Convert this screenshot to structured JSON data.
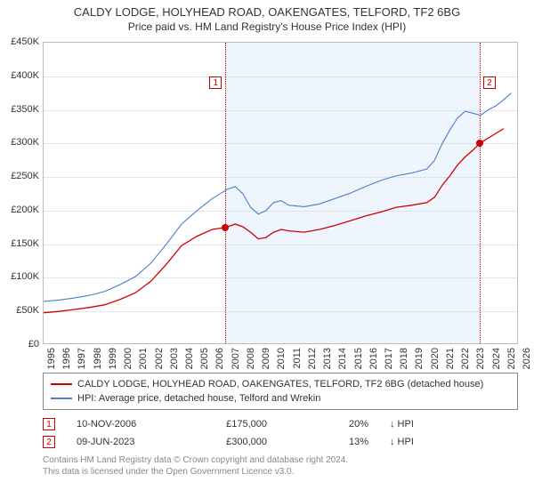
{
  "title": "CALDY LODGE, HOLYHEAD ROAD, OAKENGATES, TELFORD, TF2 6BG",
  "subtitle": "Price paid vs. HM Land Registry's House Price Index (HPI)",
  "colors": {
    "series_red": "#d00000",
    "series_blue": "#4a7fc8",
    "grid": "#d0d0d0",
    "axis": "#bbbbbb",
    "marker_border": "#c00",
    "shade_fill": "rgba(100,160,230,0.10)",
    "footer_text": "#888888"
  },
  "y_axis": {
    "min": 0,
    "max": 450,
    "ticks": [
      0,
      50,
      100,
      150,
      200,
      250,
      300,
      350,
      400,
      450
    ],
    "tick_labels": [
      "£0",
      "£50K",
      "£100K",
      "£150K",
      "£200K",
      "£250K",
      "£300K",
      "£350K",
      "£400K",
      "£450K"
    ]
  },
  "x_axis": {
    "min": 1995,
    "max": 2026,
    "ticks": [
      1995,
      1996,
      1997,
      1998,
      1999,
      2000,
      2001,
      2002,
      2003,
      2004,
      2005,
      2006,
      2007,
      2008,
      2009,
      2010,
      2011,
      2012,
      2013,
      2014,
      2015,
      2016,
      2017,
      2018,
      2019,
      2020,
      2021,
      2022,
      2023,
      2024,
      2025,
      2026
    ]
  },
  "shade_ranges": [
    {
      "x0": 2006.86,
      "x1": 2023.44
    }
  ],
  "markers": [
    {
      "n": "1",
      "x": 2006.86,
      "y_box": 400
    },
    {
      "n": "2",
      "x": 2023.44,
      "y_box": 400
    }
  ],
  "points": [
    {
      "x": 2006.86,
      "y": 175,
      "color": "#d00000"
    },
    {
      "x": 2023.44,
      "y": 300,
      "color": "#d00000"
    }
  ],
  "series": [
    {
      "name": "red",
      "color": "#d00000",
      "width": 1.3,
      "data": [
        [
          1995,
          48
        ],
        [
          1996,
          50
        ],
        [
          1997,
          53
        ],
        [
          1998,
          56
        ],
        [
          1999,
          60
        ],
        [
          2000,
          68
        ],
        [
          2001,
          78
        ],
        [
          2002,
          95
        ],
        [
          2003,
          120
        ],
        [
          2004,
          148
        ],
        [
          2005,
          162
        ],
        [
          2006,
          172
        ],
        [
          2006.86,
          175
        ],
        [
          2007.5,
          180
        ],
        [
          2008,
          176
        ],
        [
          2008.5,
          168
        ],
        [
          2009,
          158
        ],
        [
          2009.5,
          160
        ],
        [
          2010,
          168
        ],
        [
          2010.5,
          172
        ],
        [
          2011,
          170
        ],
        [
          2012,
          168
        ],
        [
          2013,
          172
        ],
        [
          2014,
          178
        ],
        [
          2015,
          185
        ],
        [
          2016,
          192
        ],
        [
          2017,
          198
        ],
        [
          2018,
          205
        ],
        [
          2019,
          208
        ],
        [
          2020,
          212
        ],
        [
          2020.5,
          220
        ],
        [
          2021,
          238
        ],
        [
          2021.5,
          252
        ],
        [
          2022,
          268
        ],
        [
          2022.5,
          280
        ],
        [
          2023,
          290
        ],
        [
          2023.44,
          300
        ],
        [
          2024,
          308
        ],
        [
          2024.5,
          315
        ],
        [
          2025,
          322
        ]
      ]
    },
    {
      "name": "blue",
      "color": "#4a7fc8",
      "width": 1.1,
      "data": [
        [
          1995,
          65
        ],
        [
          1996,
          67
        ],
        [
          1997,
          70
        ],
        [
          1998,
          74
        ],
        [
          1999,
          80
        ],
        [
          2000,
          90
        ],
        [
          2001,
          102
        ],
        [
          2002,
          122
        ],
        [
          2003,
          150
        ],
        [
          2004,
          180
        ],
        [
          2005,
          200
        ],
        [
          2006,
          218
        ],
        [
          2007,
          232
        ],
        [
          2007.5,
          236
        ],
        [
          2008,
          225
        ],
        [
          2008.5,
          205
        ],
        [
          2009,
          195
        ],
        [
          2009.5,
          200
        ],
        [
          2010,
          212
        ],
        [
          2010.5,
          215
        ],
        [
          2011,
          208
        ],
        [
          2012,
          206
        ],
        [
          2013,
          210
        ],
        [
          2014,
          218
        ],
        [
          2015,
          226
        ],
        [
          2016,
          236
        ],
        [
          2017,
          245
        ],
        [
          2018,
          252
        ],
        [
          2019,
          256
        ],
        [
          2020,
          262
        ],
        [
          2020.5,
          275
        ],
        [
          2021,
          300
        ],
        [
          2021.5,
          320
        ],
        [
          2022,
          338
        ],
        [
          2022.5,
          348
        ],
        [
          2023,
          345
        ],
        [
          2023.5,
          342
        ],
        [
          2024,
          350
        ],
        [
          2024.5,
          356
        ],
        [
          2025,
          365
        ],
        [
          2025.5,
          375
        ]
      ]
    }
  ],
  "legend": [
    {
      "color": "#d00000",
      "label": "CALDY LODGE, HOLYHEAD ROAD, OAKENGATES, TELFORD, TF2 6BG (detached house)"
    },
    {
      "color": "#4a7fc8",
      "label": "HPI: Average price, detached house, Telford and Wrekin"
    }
  ],
  "events": [
    {
      "n": "1",
      "date": "10-NOV-2006",
      "price": "£175,000",
      "pct": "20%",
      "dir": "↓ HPI"
    },
    {
      "n": "2",
      "date": "09-JUN-2023",
      "price": "£300,000",
      "pct": "13%",
      "dir": "↓ HPI"
    }
  ],
  "footer1": "Contains HM Land Registry data © Crown copyright and database right 2024.",
  "footer2": "This data is licensed under the Open Government Licence v3.0."
}
